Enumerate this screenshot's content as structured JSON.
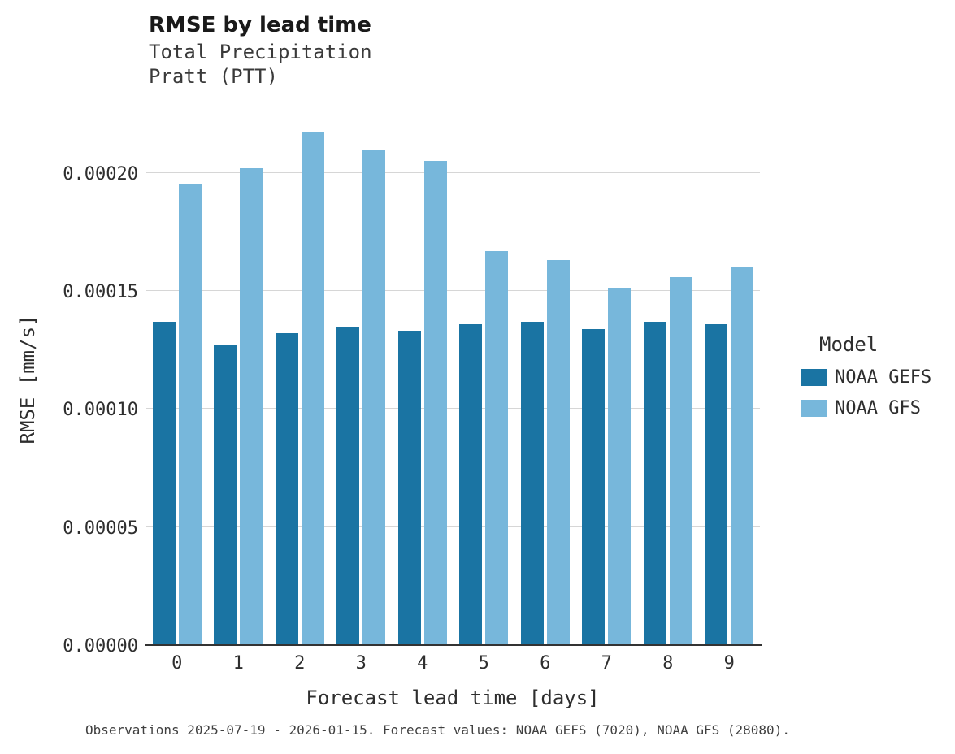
{
  "chart": {
    "title": "RMSE by lead time",
    "subtitle_line1": "Total Precipitation",
    "subtitle_line2": "Pratt (PTT)",
    "ylabel": "RMSE [mm/s]",
    "xlabel": "Forecast lead time [days]",
    "legend_title": "Model",
    "caption": "Observations 2025-07-19 - 2026-01-15. Forecast values: NOAA GEFS (7020), NOAA GFS (28080)."
  },
  "chart_data": {
    "type": "bar",
    "title": "RMSE by lead time",
    "subtitle": [
      "Total Precipitation",
      "Pratt (PTT)"
    ],
    "xlabel": "Forecast lead time [days]",
    "ylabel": "RMSE [mm/s]",
    "categories": [
      "0",
      "1",
      "2",
      "3",
      "4",
      "5",
      "6",
      "7",
      "8",
      "9"
    ],
    "series": [
      {
        "name": "NOAA GEFS",
        "color": "#1a74a3",
        "values": [
          0.000137,
          0.000127,
          0.000132,
          0.000135,
          0.000133,
          0.000136,
          0.000137,
          0.000134,
          0.000137,
          0.000136
        ]
      },
      {
        "name": "NOAA GFS",
        "color": "#77b7db",
        "values": [
          0.000195,
          0.000202,
          0.000217,
          0.00021,
          0.000205,
          0.000167,
          0.000163,
          0.000151,
          0.000156,
          0.00016
        ]
      }
    ],
    "ylim": [
      0,
      0.000225
    ],
    "yticks": [
      0,
      5e-05,
      0.0001,
      0.00015,
      0.0002
    ],
    "ytick_labels": [
      "0.00000",
      "0.00005",
      "0.00010",
      "0.00015",
      "0.00020"
    ],
    "grid": true,
    "legend_title": "Model",
    "legend_position": "right",
    "caption": "Observations 2025-07-19 - 2026-01-15. Forecast values: NOAA GEFS (7020), NOAA GFS (28080)."
  }
}
